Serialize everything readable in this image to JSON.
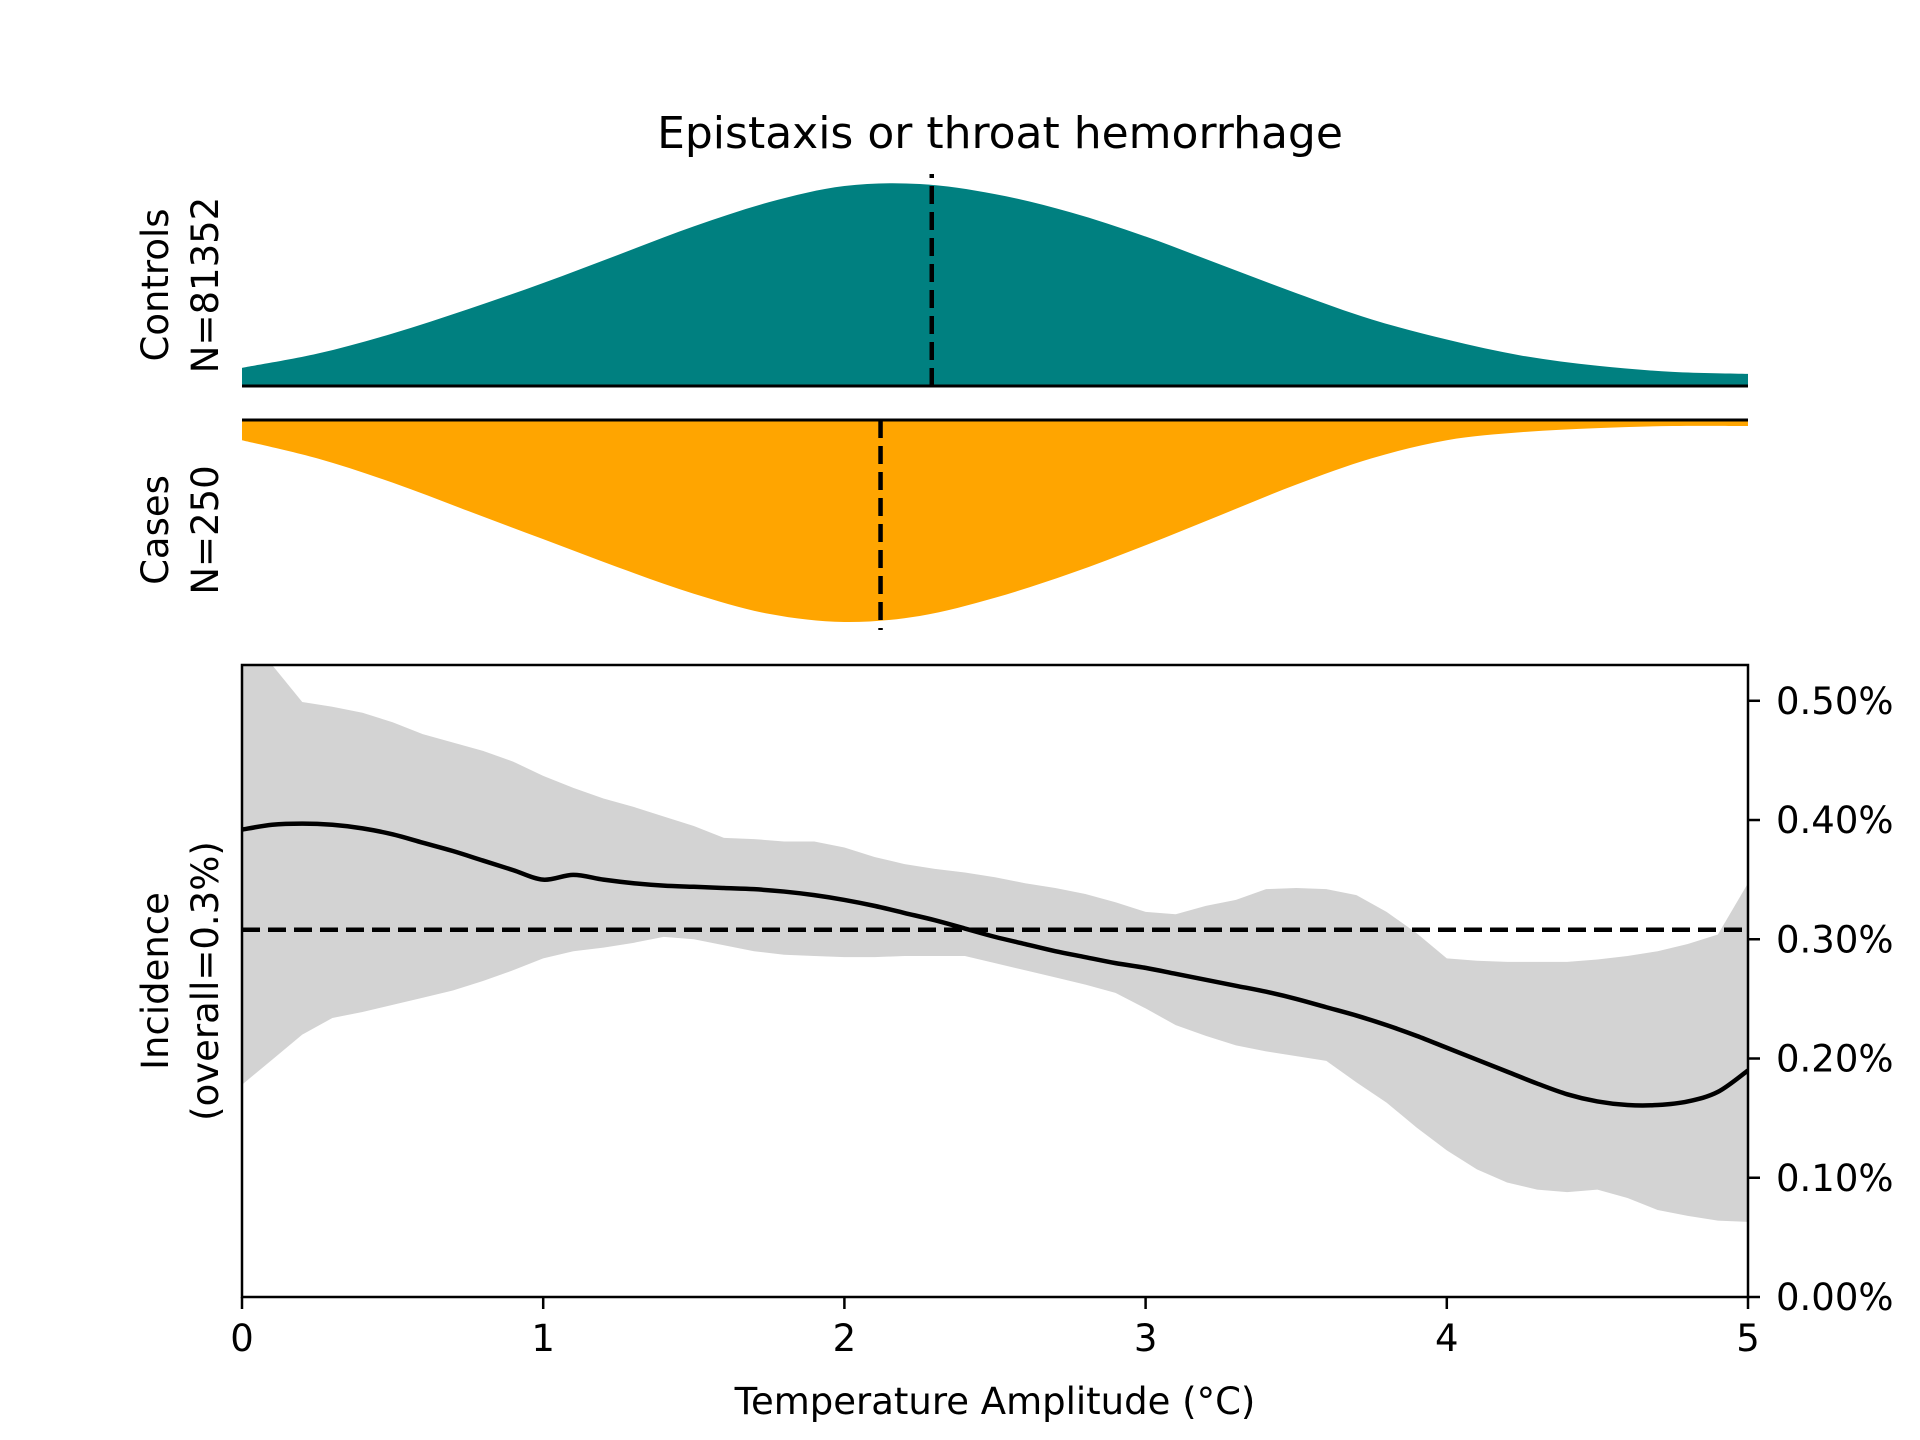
{
  "chart_data": [
    {
      "type": "area",
      "panel": "controls",
      "title": "Epistaxis or throat hemorrhage",
      "ylabel_line1": "Controls",
      "ylabel_line2": "N=81352",
      "x": [
        0,
        0.25,
        0.5,
        0.75,
        1,
        1.25,
        1.5,
        1.75,
        2,
        2.25,
        2.5,
        2.75,
        3,
        3.25,
        3.5,
        3.75,
        4,
        4.25,
        4.5,
        4.75,
        5
      ],
      "density": [
        0.09,
        0.16,
        0.26,
        0.38,
        0.51,
        0.65,
        0.79,
        0.91,
        0.99,
        1.0,
        0.95,
        0.86,
        0.74,
        0.6,
        0.46,
        0.33,
        0.23,
        0.15,
        0.1,
        0.07,
        0.06
      ],
      "median_x": 2.29,
      "color": "#008080",
      "xlim": [
        0,
        5
      ]
    },
    {
      "type": "area",
      "panel": "cases",
      "ylabel_line1": "Cases",
      "ylabel_line2": "N=250",
      "x": [
        0,
        0.25,
        0.5,
        0.75,
        1,
        1.25,
        1.5,
        1.75,
        2,
        2.25,
        2.5,
        2.75,
        3,
        3.25,
        3.5,
        3.75,
        4,
        4.25,
        4.5,
        4.75,
        5
      ],
      "density": [
        0.1,
        0.19,
        0.31,
        0.45,
        0.59,
        0.73,
        0.86,
        0.96,
        1.0,
        0.97,
        0.88,
        0.76,
        0.62,
        0.47,
        0.32,
        0.19,
        0.1,
        0.06,
        0.04,
        0.03,
        0.03
      ],
      "median_x": 2.12,
      "color": "#FFA500",
      "xlim": [
        0,
        5
      ]
    },
    {
      "type": "line",
      "panel": "incidence",
      "xlabel": "Temperature Amplitude (°C)",
      "ylabel_line1": "Incidence",
      "ylabel_line2": "(overall=0.3%)",
      "xlim": [
        0,
        5
      ],
      "ylim": [
        0,
        0.53
      ],
      "x_ticks": [
        "0",
        "1",
        "2",
        "3",
        "4",
        "5"
      ],
      "y_ticks": [
        "0.00%",
        "0.10%",
        "0.20%",
        "0.30%",
        "0.40%",
        "0.50%"
      ],
      "overall": 0.308,
      "x": [
        0,
        0.1,
        0.2,
        0.3,
        0.4,
        0.5,
        0.6,
        0.7,
        0.8,
        0.9,
        1.0,
        1.1,
        1.2,
        1.3,
        1.4,
        1.5,
        1.6,
        1.7,
        1.8,
        1.9,
        2.0,
        2.1,
        2.2,
        2.3,
        2.4,
        2.5,
        2.6,
        2.7,
        2.8,
        2.9,
        3.0,
        3.1,
        3.2,
        3.3,
        3.4,
        3.5,
        3.6,
        3.7,
        3.8,
        3.9,
        4.0,
        4.1,
        4.2,
        4.3,
        4.4,
        4.5,
        4.6,
        4.7,
        4.8,
        4.9,
        5.0
      ],
      "y": [
        0.392,
        0.396,
        0.397,
        0.396,
        0.393,
        0.388,
        0.381,
        0.374,
        0.366,
        0.358,
        0.35,
        0.354,
        0.35,
        0.347,
        0.345,
        0.344,
        0.343,
        0.342,
        0.34,
        0.337,
        0.333,
        0.328,
        0.322,
        0.316,
        0.309,
        0.302,
        0.296,
        0.29,
        0.285,
        0.28,
        0.276,
        0.271,
        0.266,
        0.261,
        0.256,
        0.25,
        0.243,
        0.236,
        0.228,
        0.219,
        0.209,
        0.199,
        0.189,
        0.179,
        0.17,
        0.164,
        0.161,
        0.161,
        0.164,
        0.172,
        0.19
      ],
      "y_upper": [
        0.53,
        0.53,
        0.499,
        0.495,
        0.49,
        0.482,
        0.472,
        0.465,
        0.458,
        0.449,
        0.437,
        0.427,
        0.418,
        0.411,
        0.403,
        0.395,
        0.385,
        0.384,
        0.382,
        0.382,
        0.377,
        0.369,
        0.363,
        0.359,
        0.356,
        0.352,
        0.347,
        0.343,
        0.338,
        0.331,
        0.323,
        0.321,
        0.328,
        0.333,
        0.342,
        0.343,
        0.342,
        0.337,
        0.323,
        0.305,
        0.284,
        0.282,
        0.281,
        0.281,
        0.281,
        0.283,
        0.286,
        0.29,
        0.296,
        0.304,
        0.347
      ],
      "y_lower": [
        0.178,
        0.199,
        0.22,
        0.234,
        0.239,
        0.245,
        0.251,
        0.257,
        0.265,
        0.274,
        0.284,
        0.29,
        0.293,
        0.297,
        0.302,
        0.3,
        0.295,
        0.29,
        0.287,
        0.286,
        0.285,
        0.285,
        0.286,
        0.286,
        0.286,
        0.28,
        0.274,
        0.268,
        0.262,
        0.255,
        0.242,
        0.228,
        0.219,
        0.211,
        0.206,
        0.202,
        0.198,
        0.18,
        0.163,
        0.142,
        0.123,
        0.107,
        0.096,
        0.09,
        0.088,
        0.09,
        0.083,
        0.073,
        0.068,
        0.064,
        0.063
      ],
      "band_color": "#D3D3D3",
      "line_color": "#000000"
    }
  ]
}
